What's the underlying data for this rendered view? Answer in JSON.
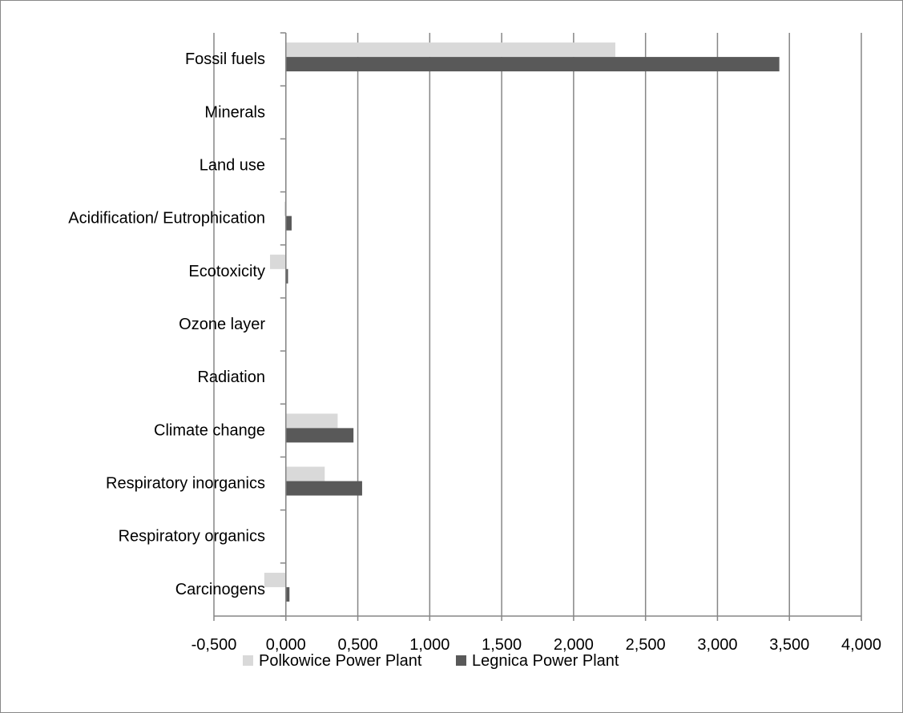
{
  "chart_data": {
    "type": "bar",
    "orientation": "horizontal",
    "title": "",
    "xlabel": "",
    "ylabel": "",
    "categories": [
      "Fossil fuels",
      "Minerals",
      "Land use",
      "Acidification/ Eutrophication",
      "Ecotoxicity",
      "Ozone layer",
      "Radiation",
      "Climate change",
      "Respiratory inorganics",
      "Respiratory organics",
      "Carcinogens"
    ],
    "series": [
      {
        "name": "Polkowice Power Plant",
        "color": "#d9d9d9",
        "values": [
          2.29,
          0.0,
          0.0,
          -0.01,
          -0.11,
          0.0,
          0.0,
          0.36,
          0.27,
          0.0,
          -0.15
        ]
      },
      {
        "name": "Legnica Power Plant",
        "color": "#595959",
        "values": [
          3.43,
          0.0,
          0.0,
          0.04,
          0.015,
          0.0,
          0.0,
          0.47,
          0.53,
          0.0,
          0.025
        ]
      }
    ],
    "xlim": [
      -0.5,
      4.0
    ],
    "xticks": [
      -0.5,
      0.0,
      0.5,
      1.0,
      1.5,
      2.0,
      2.5,
      3.0,
      3.5,
      4.0
    ],
    "xtick_labels": [
      "-0,500",
      "0,000",
      "0,500",
      "1,000",
      "1,500",
      "2,000",
      "2,500",
      "3,000",
      "3,500",
      "4,000"
    ],
    "grid": "vertical",
    "legend": "bottom"
  }
}
